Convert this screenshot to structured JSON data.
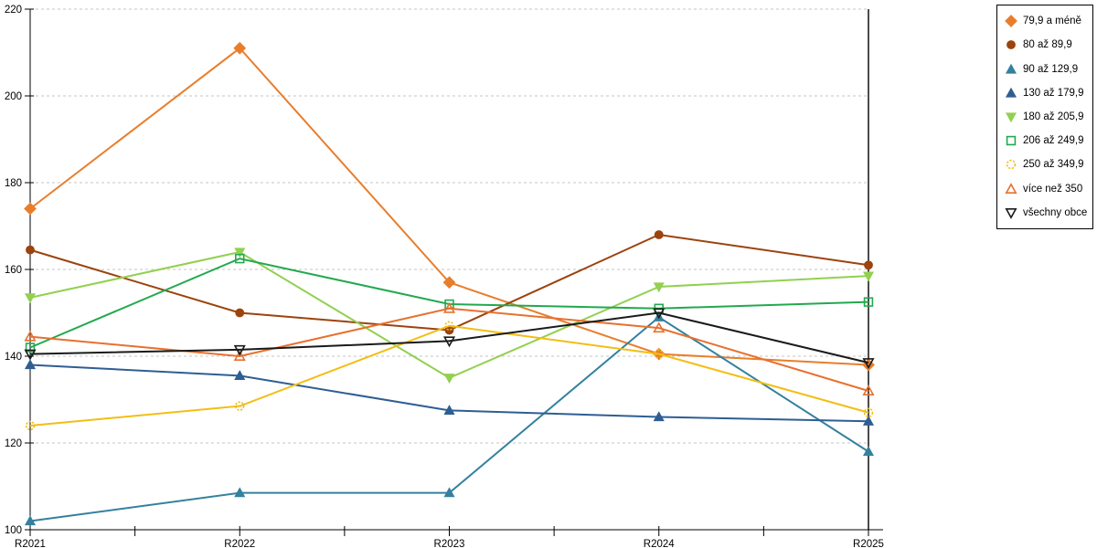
{
  "chart_data": {
    "type": "line",
    "title": "",
    "xlabel": "",
    "ylabel": "",
    "categories": [
      "R2021",
      "R2022",
      "R2023",
      "R2024",
      "R2025"
    ],
    "ylim": [
      100,
      220
    ],
    "ytick_step": 20,
    "y_tick_labels": [
      "100",
      "120",
      "140",
      "160",
      "180",
      "200",
      "220"
    ],
    "grid": "horizontal-dashed",
    "legend_position": "right",
    "series": [
      {
        "name": "79,9 a méně",
        "color": "#e87e2c",
        "marker": "diamond",
        "fill": "filled",
        "values": [
          174,
          211,
          157,
          140.5,
          138
        ]
      },
      {
        "name": "80 až 89,9",
        "color": "#9c430e",
        "marker": "circle",
        "fill": "filled",
        "values": [
          164.5,
          150,
          146,
          168,
          161
        ]
      },
      {
        "name": "90 až 129,9",
        "color": "#34819e",
        "marker": "triangle-up",
        "fill": "filled",
        "values": [
          102,
          108.5,
          108.5,
          149,
          118
        ]
      },
      {
        "name": "130 až 179,9",
        "color": "#2e5e92",
        "marker": "triangle-up",
        "fill": "filled",
        "values": [
          138,
          135.5,
          127.5,
          126,
          125
        ]
      },
      {
        "name": "180 až 205,9",
        "color": "#92d050",
        "marker": "triangle-down",
        "fill": "filled",
        "values": [
          153.5,
          164,
          135,
          156,
          158.5
        ]
      },
      {
        "name": "206 až 249,9",
        "color": "#22a94e",
        "marker": "square",
        "fill": "hollow",
        "values": [
          142,
          162.5,
          152,
          151,
          152.5
        ]
      },
      {
        "name": "250 až 349,9",
        "color": "#f2be14",
        "marker": "circle",
        "fill": "hollow",
        "dashed_marker": true,
        "values": [
          124,
          128.5,
          147,
          140.5,
          127
        ]
      },
      {
        "name": "více než 350",
        "color": "#e8702e",
        "marker": "triangle-up",
        "fill": "hollow",
        "values": [
          144.5,
          140,
          151,
          146.5,
          132
        ]
      },
      {
        "name": "všechny obce",
        "color": "#1a1a1a",
        "marker": "triangle-down",
        "fill": "hollow",
        "values": [
          140.5,
          141.5,
          143.5,
          150,
          138.5
        ]
      }
    ]
  }
}
